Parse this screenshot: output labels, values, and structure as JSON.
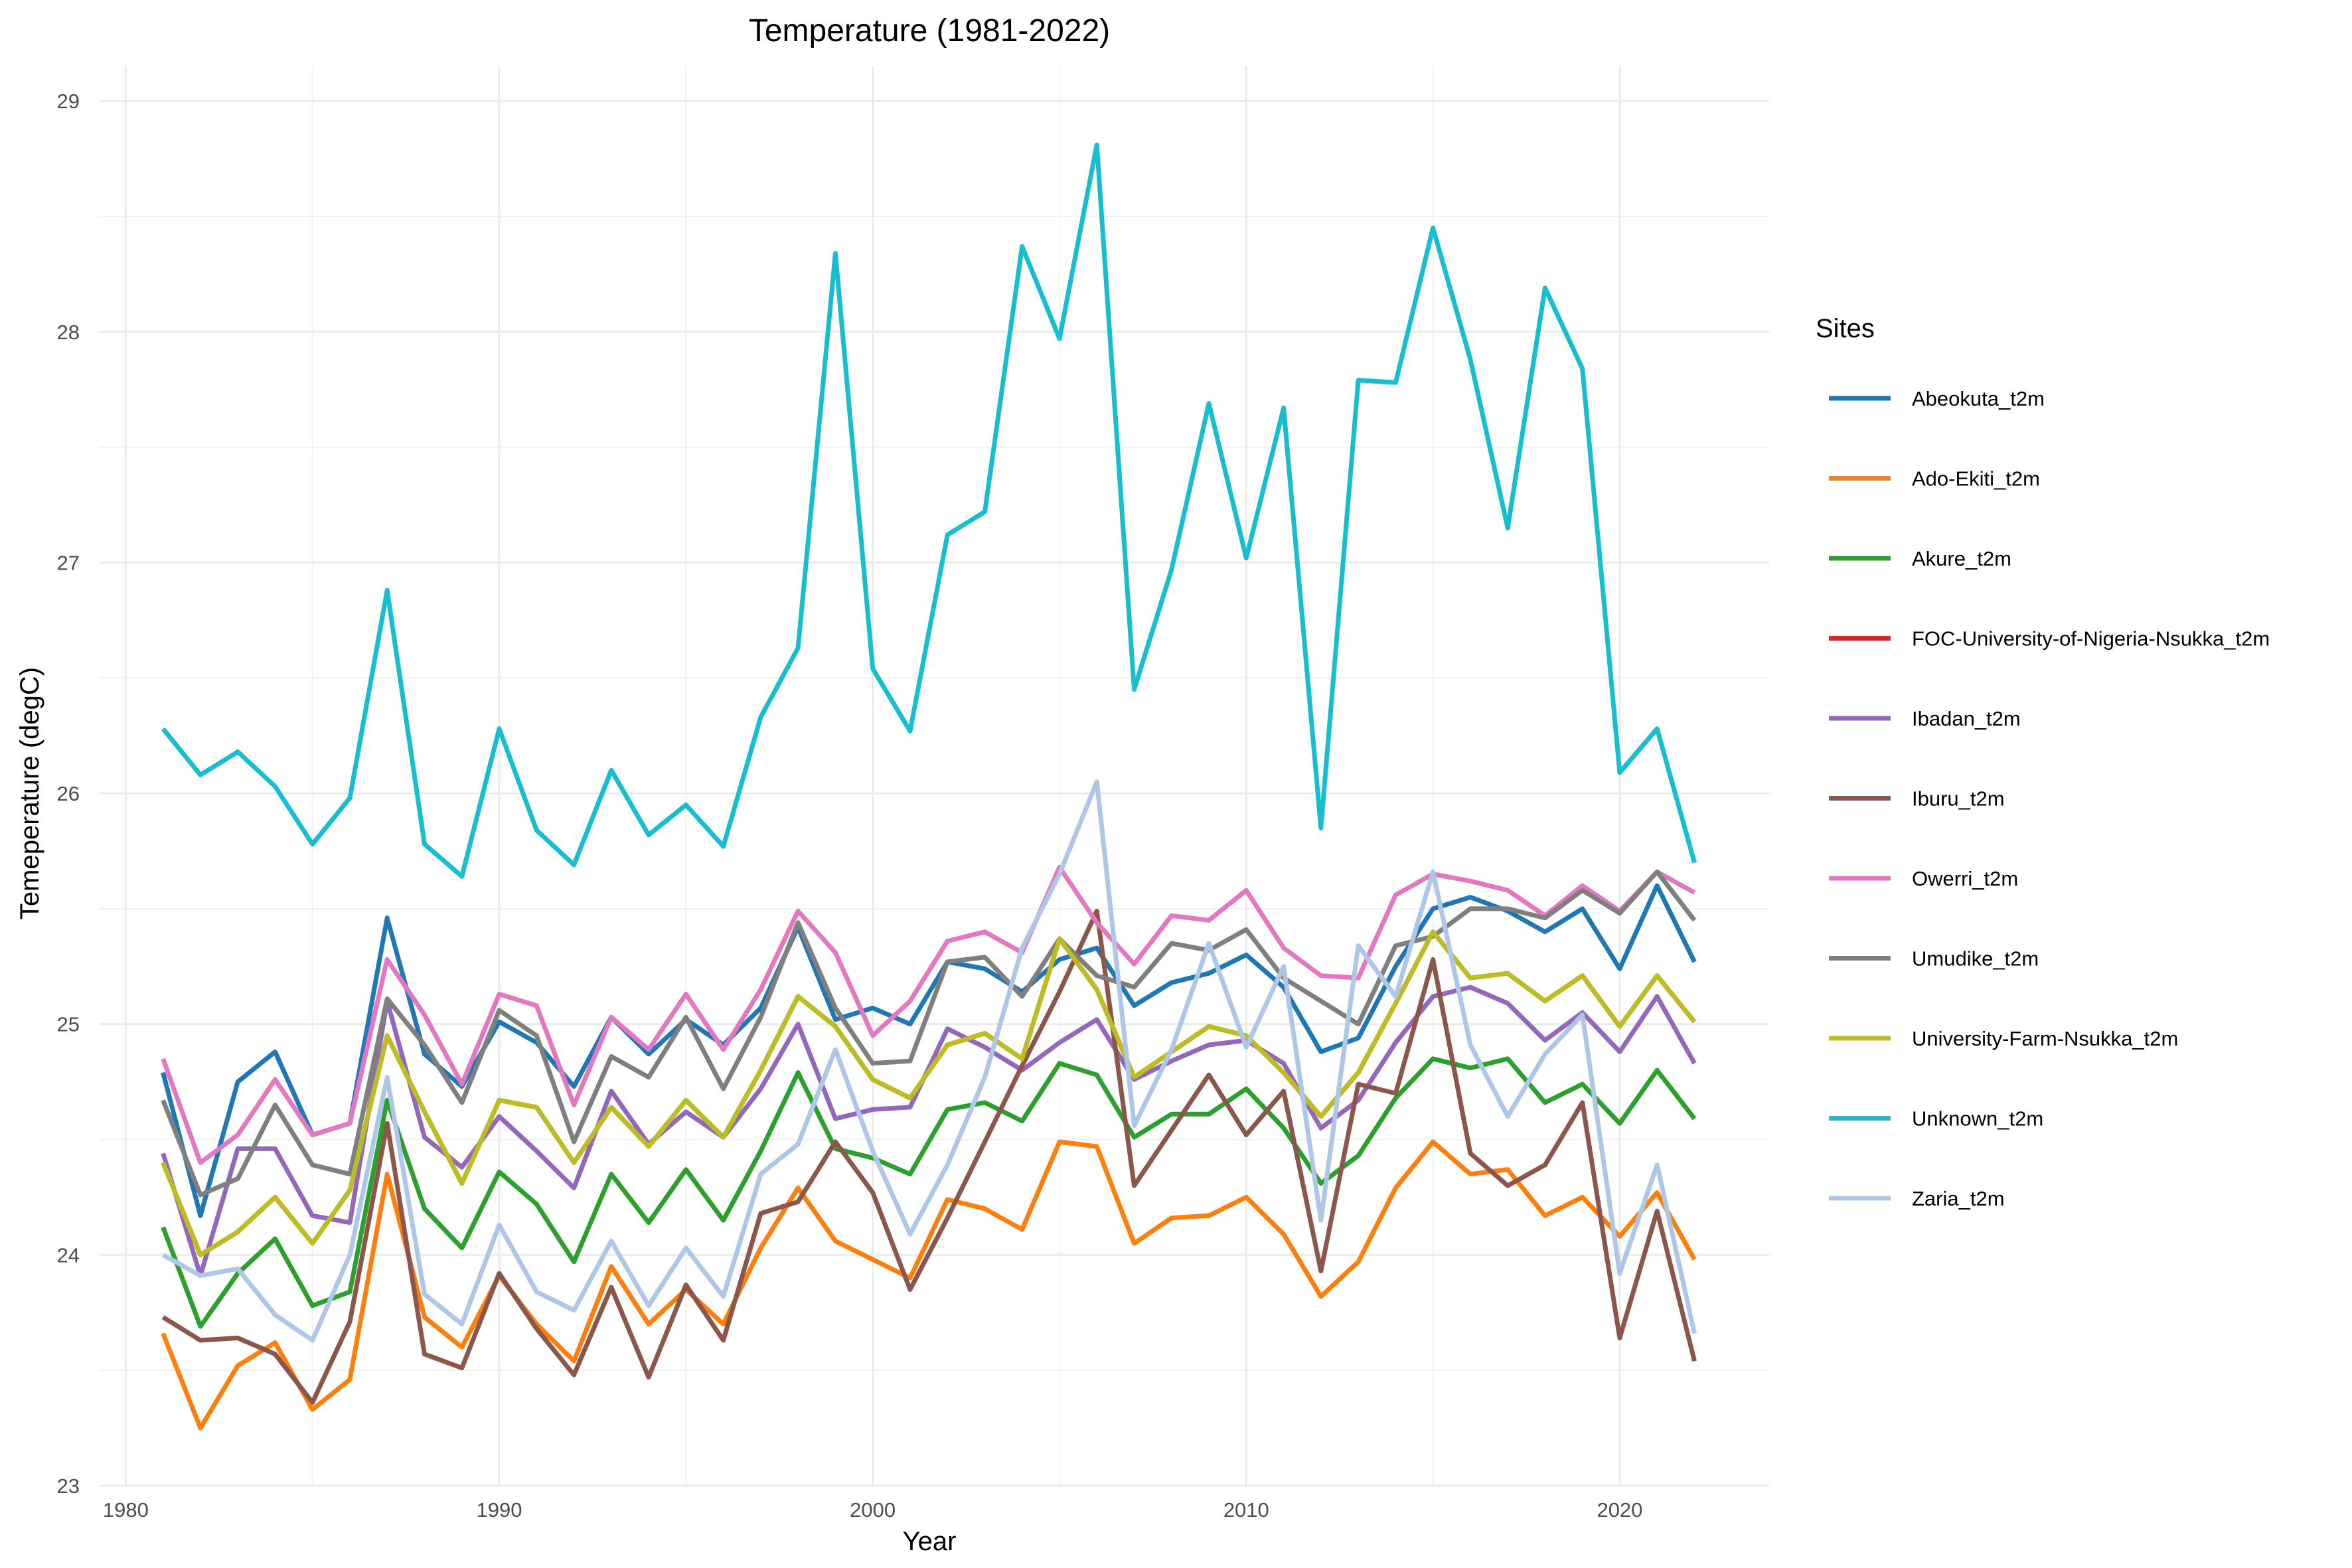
{
  "chart_data": {
    "type": "line",
    "title": "Temperature (1981-2022)",
    "xlabel": "Year",
    "ylabel": "Temeperature (degC)",
    "xlim": [
      1979.3,
      2024.0
    ],
    "ylim": [
      23.0,
      29.15
    ],
    "xticks": [
      1980,
      1990,
      2000,
      2010,
      2020
    ],
    "yticks": [
      23,
      24,
      25,
      26,
      27,
      28,
      29
    ],
    "grid": true,
    "legend_title": "Sites",
    "legend_position": "right",
    "x": [
      1981,
      1982,
      1983,
      1984,
      1985,
      1986,
      1987,
      1988,
      1989,
      1990,
      1991,
      1992,
      1993,
      1994,
      1995,
      1996,
      1997,
      1998,
      1999,
      2000,
      2001,
      2002,
      2003,
      2004,
      2005,
      2006,
      2007,
      2008,
      2009,
      2010,
      2011,
      2012,
      2013,
      2014,
      2015,
      2016,
      2017,
      2018,
      2019,
      2020,
      2021,
      2022
    ],
    "series": [
      {
        "name": "Abeokuta_t2m",
        "color": "#1f77b4",
        "values": [
          24.79,
          24.17,
          24.75,
          24.88,
          24.52,
          24.57,
          25.46,
          24.87,
          24.73,
          25.01,
          24.92,
          24.73,
          25.03,
          24.87,
          25.02,
          24.91,
          25.07,
          25.42,
          25.02,
          25.07,
          25.0,
          25.27,
          25.24,
          25.14,
          25.28,
          25.33,
          25.08,
          25.18,
          25.22,
          25.3,
          25.16,
          24.88,
          24.94,
          25.25,
          25.5,
          25.55,
          25.49,
          25.4,
          25.5,
          25.24,
          25.6,
          25.27
        ]
      },
      {
        "name": "Ado-Ekiti_t2m",
        "color": "#ff7f0e",
        "values": [
          23.66,
          23.25,
          23.52,
          23.62,
          23.33,
          23.46,
          24.35,
          23.73,
          23.6,
          23.91,
          23.7,
          23.54,
          23.95,
          23.7,
          23.85,
          23.7,
          24.03,
          24.29,
          24.06,
          23.98,
          23.9,
          24.24,
          24.2,
          24.11,
          24.49,
          24.47,
          24.05,
          24.16,
          24.17,
          24.25,
          24.09,
          23.82,
          23.97,
          24.29,
          24.49,
          24.35,
          24.37,
          24.17,
          24.25,
          24.08,
          24.27,
          23.98
        ]
      },
      {
        "name": "Akure_t2m",
        "color": "#2ca02c",
        "values": [
          24.12,
          23.69,
          23.92,
          24.07,
          23.78,
          23.84,
          24.67,
          24.2,
          24.03,
          24.36,
          24.22,
          23.97,
          24.35,
          24.14,
          24.37,
          24.15,
          24.45,
          24.79,
          24.46,
          24.42,
          24.35,
          24.63,
          24.66,
          24.58,
          24.83,
          24.78,
          24.51,
          24.61,
          24.61,
          24.72,
          24.55,
          24.31,
          24.43,
          24.68,
          24.85,
          24.81,
          24.85,
          24.66,
          24.74,
          24.57,
          24.8,
          24.59
        ]
      },
      {
        "name": "FOC-University-of-Nigeria-Nsukka_t2m",
        "color": "#d62728",
        "values": [
          24.4,
          24.0,
          24.1,
          24.25,
          24.05,
          24.28,
          24.95,
          24.62,
          24.31,
          24.67,
          24.64,
          24.4,
          24.64,
          24.47,
          24.67,
          24.51,
          24.8,
          25.12,
          24.99,
          24.76,
          24.68,
          24.91,
          24.96,
          24.85,
          25.37,
          25.15,
          24.77,
          24.88,
          24.99,
          24.95,
          24.79,
          24.6,
          24.79,
          25.09,
          25.4,
          25.2,
          25.22,
          25.1,
          25.21,
          24.99,
          25.21,
          25.01
        ]
      },
      {
        "name": "Ibadan_t2m",
        "color": "#9467bd",
        "values": [
          24.44,
          23.91,
          24.46,
          24.46,
          24.17,
          24.14,
          25.1,
          24.51,
          24.38,
          24.6,
          24.45,
          24.29,
          24.71,
          24.48,
          24.62,
          24.51,
          24.72,
          25.0,
          24.59,
          24.63,
          24.64,
          24.98,
          24.9,
          24.8,
          24.92,
          25.02,
          24.76,
          24.84,
          24.91,
          24.93,
          24.83,
          24.55,
          24.67,
          24.92,
          25.12,
          25.16,
          25.09,
          24.93,
          25.05,
          24.88,
          25.12,
          24.83
        ]
      },
      {
        "name": "Iburu_t2m",
        "color": "#8c564b",
        "values": [
          23.73,
          23.63,
          23.64,
          23.57,
          23.36,
          23.71,
          24.57,
          23.57,
          23.51,
          23.92,
          23.68,
          23.48,
          23.86,
          23.47,
          23.87,
          23.63,
          24.18,
          24.23,
          24.49,
          24.27,
          23.85,
          24.16,
          24.49,
          24.82,
          25.14,
          25.49,
          24.3,
          24.54,
          24.78,
          24.52,
          24.71,
          23.93,
          24.74,
          24.7,
          25.28,
          24.44,
          24.3,
          24.39,
          24.66,
          23.64,
          24.19,
          23.54
        ]
      },
      {
        "name": "Owerri_t2m",
        "color": "#e377c2",
        "values": [
          24.85,
          24.4,
          24.52,
          24.76,
          24.52,
          24.57,
          25.28,
          25.04,
          24.74,
          25.13,
          25.08,
          24.65,
          25.03,
          24.89,
          25.13,
          24.89,
          25.15,
          25.49,
          25.31,
          24.95,
          25.1,
          25.36,
          25.4,
          25.31,
          25.68,
          25.44,
          25.26,
          25.47,
          25.45,
          25.58,
          25.33,
          25.21,
          25.2,
          25.56,
          25.65,
          25.62,
          25.58,
          25.47,
          25.6,
          25.49,
          25.66,
          25.57
        ]
      },
      {
        "name": "Umudike_t2m",
        "color": "#7f7f7f",
        "values": [
          24.67,
          24.26,
          24.33,
          24.65,
          24.39,
          24.35,
          25.11,
          24.91,
          24.66,
          25.06,
          24.95,
          24.49,
          24.86,
          24.77,
          25.03,
          24.72,
          25.03,
          25.44,
          25.07,
          24.83,
          24.84,
          25.27,
          25.29,
          25.12,
          25.37,
          25.21,
          25.16,
          25.35,
          25.32,
          25.41,
          25.2,
          25.1,
          25.0,
          25.34,
          25.38,
          25.5,
          25.5,
          25.46,
          25.58,
          25.48,
          25.66,
          25.45
        ]
      },
      {
        "name": "University-Farm-Nsukka_t2m",
        "color": "#bcbd22",
        "values": [
          24.4,
          24.0,
          24.1,
          24.25,
          24.05,
          24.28,
          24.95,
          24.62,
          24.31,
          24.67,
          24.64,
          24.4,
          24.64,
          24.47,
          24.67,
          24.51,
          24.8,
          25.12,
          24.99,
          24.76,
          24.68,
          24.91,
          24.96,
          24.85,
          25.37,
          25.15,
          24.77,
          24.88,
          24.99,
          24.95,
          24.79,
          24.6,
          24.79,
          25.09,
          25.4,
          25.2,
          25.22,
          25.1,
          25.21,
          24.99,
          25.21,
          25.01
        ]
      },
      {
        "name": "Unknown_t2m",
        "color": "#17becf",
        "values": [
          26.28,
          26.08,
          26.18,
          26.03,
          25.78,
          25.98,
          26.88,
          25.78,
          25.64,
          26.28,
          25.84,
          25.69,
          26.1,
          25.82,
          25.95,
          25.77,
          26.33,
          26.63,
          28.34,
          26.54,
          26.27,
          27.12,
          27.22,
          28.37,
          27.97,
          28.81,
          26.45,
          26.97,
          27.69,
          27.02,
          27.67,
          25.85,
          27.79,
          27.78,
          28.45,
          27.88,
          27.15,
          28.19,
          27.84,
          26.09,
          26.28,
          25.7
        ]
      },
      {
        "name": "Zaria_t2m",
        "color": "#aec7e8",
        "values": [
          24.0,
          23.91,
          23.94,
          23.74,
          23.63,
          24.0,
          24.77,
          23.83,
          23.7,
          24.13,
          23.84,
          23.76,
          24.06,
          23.78,
          24.03,
          23.82,
          24.35,
          24.48,
          24.89,
          24.45,
          24.09,
          24.39,
          24.77,
          25.33,
          25.65,
          26.05,
          24.56,
          24.89,
          25.35,
          24.9,
          25.25,
          24.15,
          25.34,
          25.12,
          25.66,
          24.91,
          24.6,
          24.87,
          25.04,
          23.92,
          24.39,
          23.66
        ]
      }
    ]
  }
}
